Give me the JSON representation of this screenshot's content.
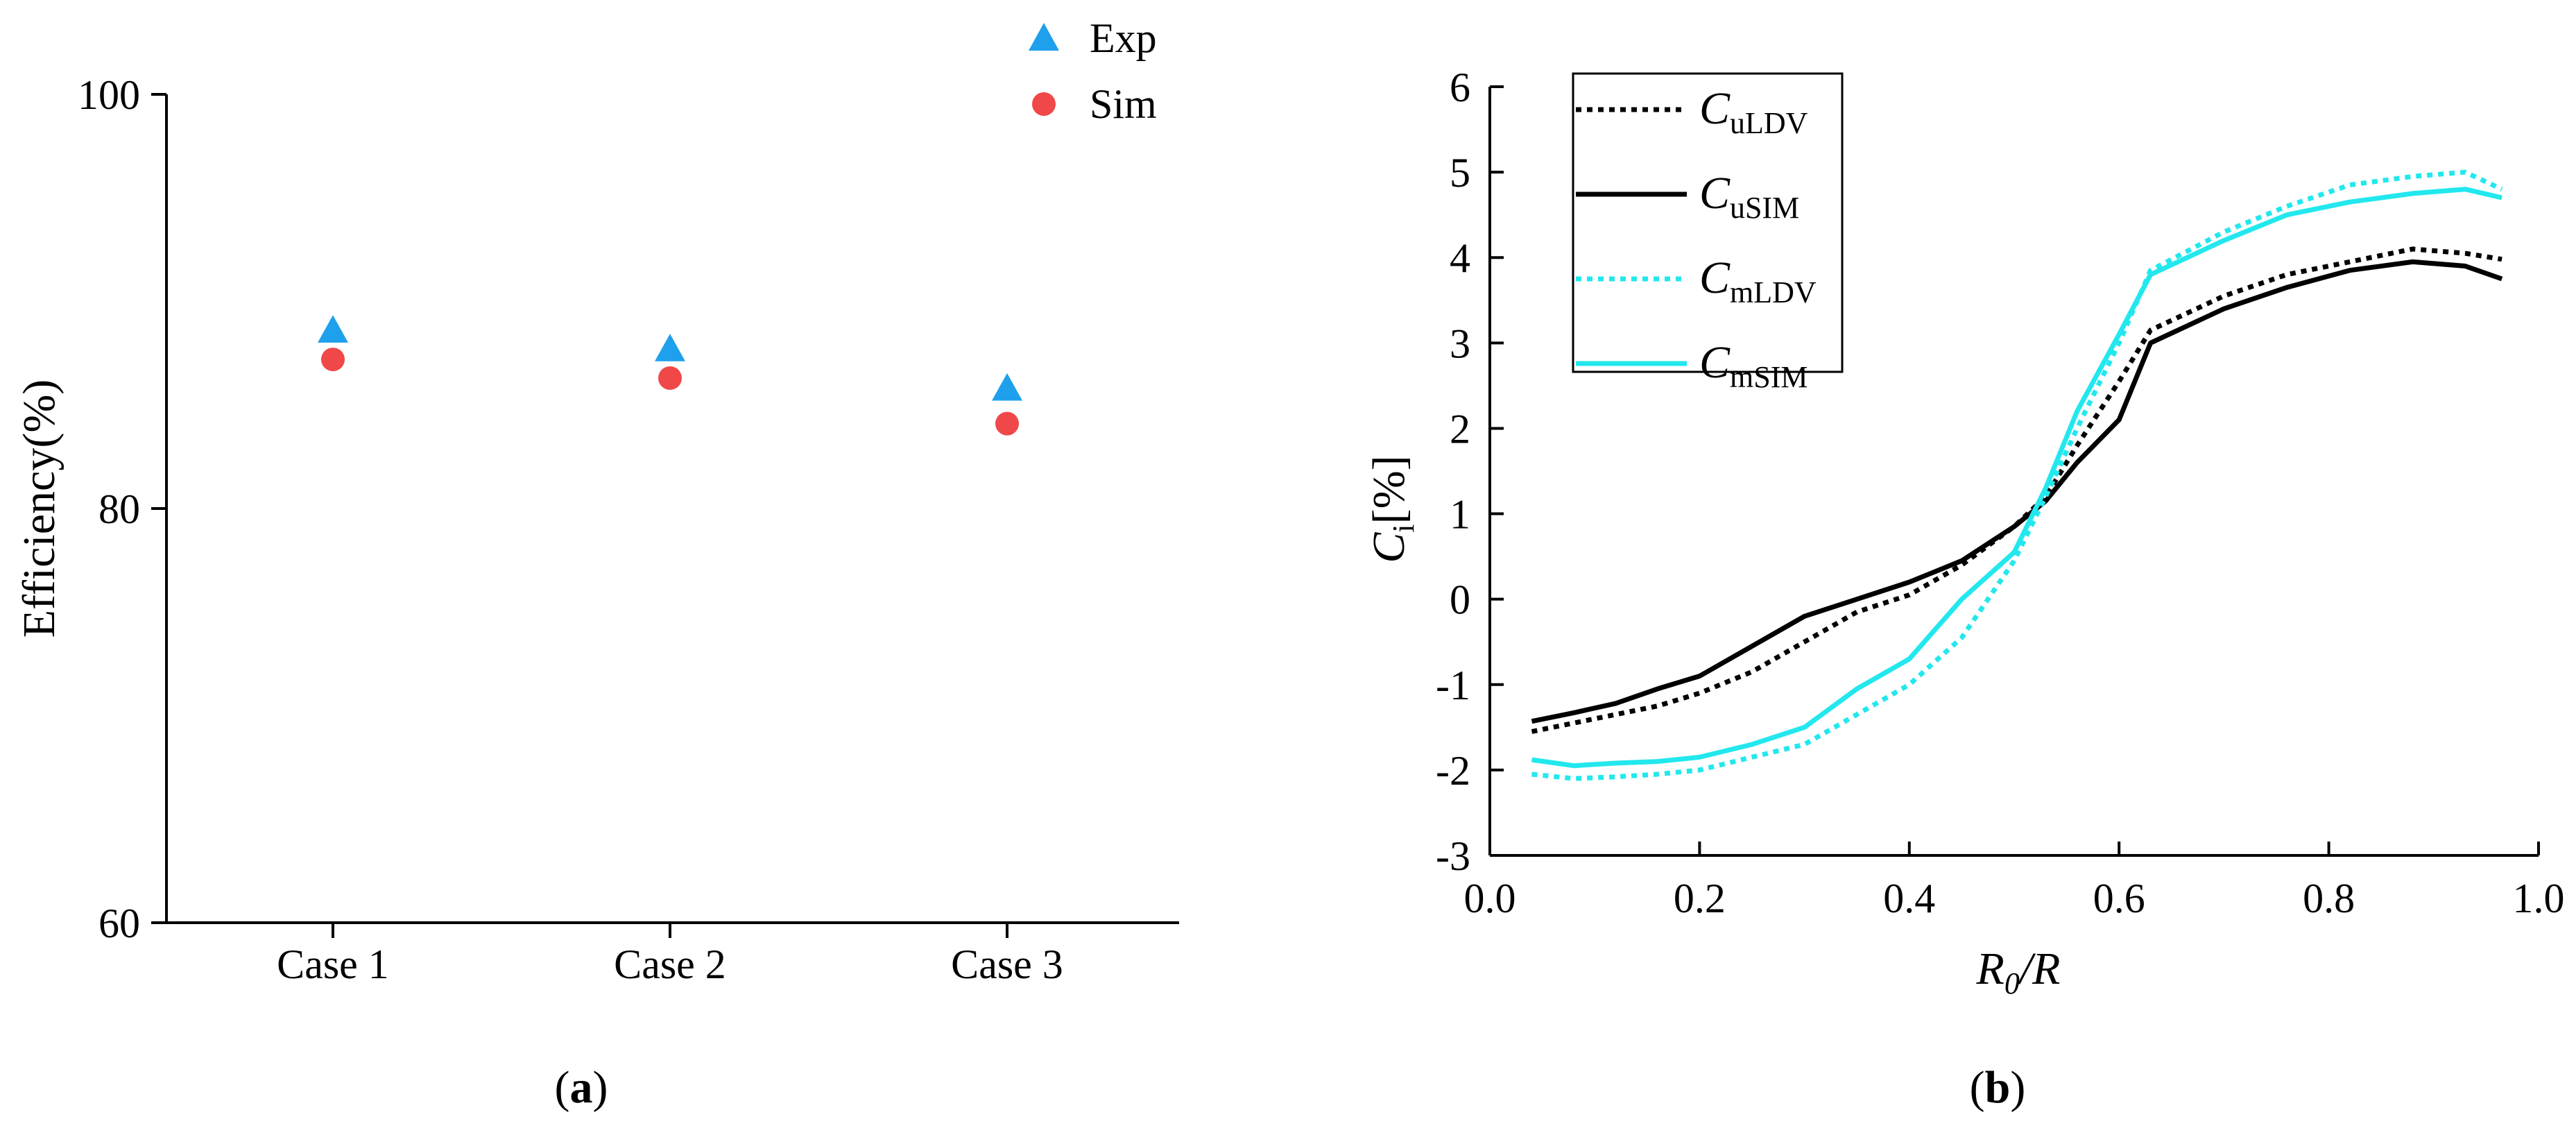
{
  "chart_data": [
    {
      "id": "a",
      "panel_label": "a",
      "type": "scatter",
      "title": "",
      "xlabel": "",
      "ylabel": "Efficiency(%)",
      "categories": [
        "Case 1",
        "Case 2",
        "Case 3"
      ],
      "ylim": [
        60,
        100
      ],
      "yticks": [
        60,
        80,
        100
      ],
      "grid": false,
      "legend_position": "top-right",
      "series": [
        {
          "name": "Exp",
          "marker": "triangle",
          "color": "#1fa0ec",
          "values": [
            88.6,
            87.7,
            85.8
          ]
        },
        {
          "name": "Sim",
          "marker": "circle",
          "color": "#f04848",
          "values": [
            87.2,
            86.3,
            84.1
          ]
        }
      ]
    },
    {
      "id": "b",
      "panel_label": "b",
      "type": "line",
      "title": "",
      "xlabel": {
        "base": "R",
        "sub": "0",
        "suffix": "/R"
      },
      "ylabel": {
        "base": "C",
        "sub": "i",
        "suffix": "[%]"
      },
      "xlim": [
        0.0,
        1.0
      ],
      "ylim": [
        -3,
        6
      ],
      "xticks": [
        "0.0",
        "0.2",
        "0.4",
        "0.6",
        "0.8",
        "1.0"
      ],
      "yticks": [
        "-3",
        "-2",
        "-1",
        "0",
        "1",
        "2",
        "3",
        "4",
        "5",
        "6"
      ],
      "grid": false,
      "legend_position": "top-left",
      "series": [
        {
          "name": "C",
          "sub": "uLDV",
          "color": "#000000",
          "dash": true,
          "x": [
            0.04,
            0.08,
            0.12,
            0.16,
            0.2,
            0.25,
            0.3,
            0.35,
            0.4,
            0.45,
            0.5,
            0.53,
            0.56,
            0.6,
            0.63,
            0.7,
            0.76,
            0.82,
            0.88,
            0.93,
            0.965
          ],
          "y": [
            -1.55,
            -1.45,
            -1.35,
            -1.25,
            -1.1,
            -0.85,
            -0.5,
            -0.15,
            0.05,
            0.4,
            0.85,
            1.2,
            1.8,
            2.55,
            3.15,
            3.55,
            3.8,
            3.95,
            4.1,
            4.05,
            3.98
          ]
        },
        {
          "name": "C",
          "sub": "uSIM",
          "color": "#000000",
          "dash": false,
          "x": [
            0.04,
            0.08,
            0.12,
            0.16,
            0.2,
            0.25,
            0.3,
            0.35,
            0.4,
            0.45,
            0.5,
            0.53,
            0.56,
            0.6,
            0.63,
            0.7,
            0.76,
            0.82,
            0.88,
            0.93,
            0.965
          ],
          "y": [
            -1.43,
            -1.33,
            -1.22,
            -1.05,
            -0.9,
            -0.55,
            -0.2,
            0.0,
            0.2,
            0.45,
            0.85,
            1.15,
            1.6,
            2.1,
            3.0,
            3.4,
            3.65,
            3.85,
            3.95,
            3.9,
            3.75
          ]
        },
        {
          "name": "C",
          "sub": "mLDV",
          "color": "#22e8ee",
          "dash": true,
          "x": [
            0.04,
            0.08,
            0.12,
            0.16,
            0.2,
            0.25,
            0.3,
            0.35,
            0.4,
            0.45,
            0.5,
            0.53,
            0.56,
            0.6,
            0.63,
            0.7,
            0.76,
            0.82,
            0.88,
            0.93,
            0.965
          ],
          "y": [
            -2.05,
            -2.1,
            -2.08,
            -2.05,
            -2.0,
            -1.85,
            -1.7,
            -1.35,
            -1.0,
            -0.45,
            0.45,
            1.2,
            2.0,
            3.0,
            3.85,
            4.3,
            4.6,
            4.85,
            4.95,
            5.0,
            4.8
          ]
        },
        {
          "name": "C",
          "sub": "mSIM",
          "color": "#22e8ee",
          "dash": false,
          "x": [
            0.04,
            0.08,
            0.12,
            0.16,
            0.2,
            0.25,
            0.3,
            0.35,
            0.4,
            0.45,
            0.5,
            0.53,
            0.56,
            0.6,
            0.63,
            0.7,
            0.76,
            0.82,
            0.88,
            0.93,
            0.965
          ],
          "y": [
            -1.88,
            -1.95,
            -1.92,
            -1.9,
            -1.85,
            -1.7,
            -1.5,
            -1.05,
            -0.7,
            0.0,
            0.55,
            1.3,
            2.2,
            3.1,
            3.8,
            4.2,
            4.5,
            4.65,
            4.75,
            4.8,
            4.7
          ]
        }
      ]
    }
  ]
}
